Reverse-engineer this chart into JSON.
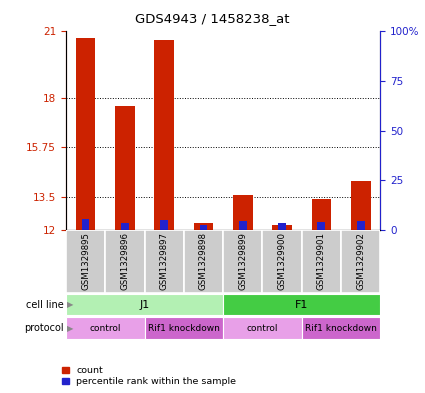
{
  "title": "GDS4943 / 1458238_at",
  "samples": [
    "GSM1329895",
    "GSM1329896",
    "GSM1329897",
    "GSM1329898",
    "GSM1329899",
    "GSM1329900",
    "GSM1329901",
    "GSM1329902"
  ],
  "red_values": [
    20.7,
    17.6,
    20.6,
    12.3,
    13.6,
    12.2,
    13.4,
    14.2
  ],
  "blue_values": [
    12.5,
    12.3,
    12.45,
    12.22,
    12.42,
    12.32,
    12.35,
    12.42
  ],
  "ymin": 12,
  "ymax": 21,
  "yticks_left": [
    12,
    13.5,
    15.75,
    18,
    21
  ],
  "yticks_right": [
    0,
    25,
    50,
    75,
    100
  ],
  "ytick_labels_right": [
    "0",
    "25",
    "50",
    "75",
    "100%"
  ],
  "hlines": [
    13.5,
    15.75,
    18
  ],
  "cell_line_labels": [
    [
      "J1",
      0,
      3
    ],
    [
      "F1",
      4,
      7
    ]
  ],
  "protocol_labels": [
    [
      "control",
      0,
      1
    ],
    [
      "Rif1 knockdown",
      2,
      3
    ],
    [
      "control",
      4,
      5
    ],
    [
      "Rif1 knockdown",
      6,
      7
    ]
  ],
  "cell_line_colors": [
    "#b3f0b3",
    "#44cc44"
  ],
  "protocol_colors_alt": [
    "#e8a0e8",
    "#cc66cc"
  ],
  "bar_color_red": "#cc2200",
  "bar_color_blue": "#2222cc",
  "bar_width": 0.5,
  "legend_red": "count",
  "legend_blue": "percentile rank within the sample"
}
